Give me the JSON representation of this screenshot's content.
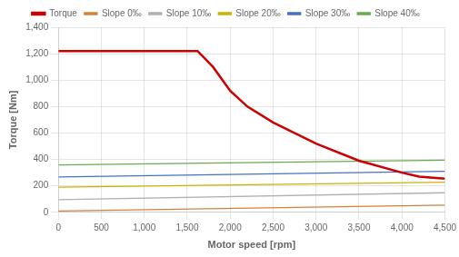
{
  "chart_data": {
    "type": "line",
    "xlabel": "Motor speed [rpm]",
    "ylabel": "Torque [Nm]",
    "xlim": [
      0,
      4500
    ],
    "ylim": [
      0,
      1400
    ],
    "xticks": [
      0,
      500,
      1000,
      1500,
      2000,
      2500,
      3000,
      3500,
      4000,
      4500
    ],
    "yticks": [
      0,
      200,
      400,
      600,
      800,
      1000,
      1200,
      1400
    ],
    "grid": true,
    "legend": "top",
    "series": [
      {
        "name": "Torque",
        "color": "#cc0000",
        "x": [
          0,
          1620,
          1800,
          2000,
          2200,
          2500,
          3000,
          3500,
          4000,
          4200,
          4500
        ],
        "values": [
          1220,
          1220,
          1100,
          920,
          800,
          680,
          520,
          390,
          300,
          270,
          255
        ]
      },
      {
        "name": "Slope 0‰",
        "color": "#d4823a",
        "x": [
          0,
          4500
        ],
        "values": [
          10,
          55
        ]
      },
      {
        "name": "Slope 10‰",
        "color": "#b0b0b0",
        "x": [
          0,
          4500
        ],
        "values": [
          95,
          148
        ]
      },
      {
        "name": "Slope 20‰",
        "color": "#c8b400",
        "x": [
          0,
          4500
        ],
        "values": [
          190,
          228
        ]
      },
      {
        "name": "Slope 30‰",
        "color": "#4472c4",
        "x": [
          0,
          4500
        ],
        "values": [
          268,
          310
        ]
      },
      {
        "name": "Slope 40‰",
        "color": "#6aaa50",
        "x": [
          0,
          4500
        ],
        "values": [
          358,
          395
        ]
      }
    ]
  }
}
